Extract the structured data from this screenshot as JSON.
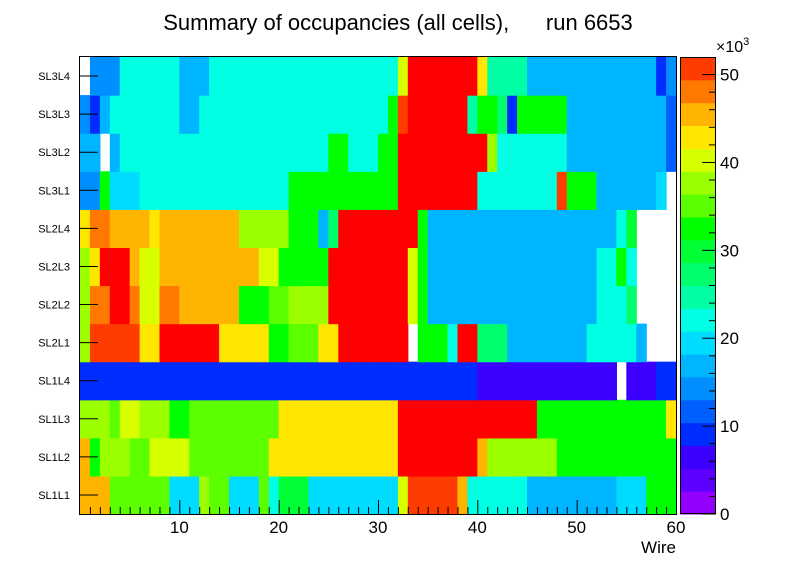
{
  "chart_data": {
    "type": "heatmap",
    "title": "Summary of occupancies (all cells),      run 6653",
    "xlabel": "Wire",
    "ylabel": "",
    "xlim": [
      0,
      60
    ],
    "x_ticks": [
      10,
      20,
      30,
      40,
      50,
      60
    ],
    "rows": [
      "SL1L1",
      "SL1L2",
      "SL1L3",
      "SL1L4",
      "SL2L1",
      "SL2L2",
      "SL2L3",
      "SL2L4",
      "SL3L1",
      "SL3L2",
      "SL3L3",
      "SL3L4"
    ],
    "colorbar": {
      "min": 0,
      "max": 52000,
      "levels": 20,
      "tick_values": [
        0,
        10,
        20,
        30,
        40,
        50
      ],
      "exponent_label": "×10",
      "exponent_power": "3",
      "colors": [
        "#9400ff",
        "#5d00ff",
        "#3c00ff",
        "#002dff",
        "#005fff",
        "#008fff",
        "#00b5ff",
        "#00dcff",
        "#00ffe3",
        "#00ffa5",
        "#00ff6c",
        "#00ff35",
        "#00ff00",
        "#5cff00",
        "#9cff00",
        "#d8ff00",
        "#ffe600",
        "#ffb400",
        "#ff7800",
        "#ff3c00",
        "#ff0000"
      ]
    },
    "data": [
      {
        "row": "SL1L1",
        "segments": [
          [
            0,
            3,
            17
          ],
          [
            3,
            9,
            13
          ],
          [
            9,
            12,
            7
          ],
          [
            12,
            13,
            14
          ],
          [
            13,
            15,
            13
          ],
          [
            15,
            18,
            7
          ],
          [
            18,
            19,
            13
          ],
          [
            19,
            20,
            8
          ],
          [
            20,
            23,
            11
          ],
          [
            23,
            32,
            7
          ],
          [
            32,
            33,
            15
          ],
          [
            33,
            38,
            19
          ],
          [
            38,
            39,
            17
          ],
          [
            39,
            45,
            8
          ],
          [
            45,
            54,
            6
          ],
          [
            54,
            57,
            7
          ],
          [
            57,
            60,
            12
          ]
        ]
      },
      {
        "row": "SL1L2",
        "segments": [
          [
            0,
            1,
            17
          ],
          [
            1,
            2,
            12
          ],
          [
            2,
            5,
            14
          ],
          [
            5,
            7,
            13
          ],
          [
            7,
            11,
            15
          ],
          [
            11,
            19,
            13
          ],
          [
            19,
            32,
            16
          ],
          [
            32,
            33,
            28
          ],
          [
            33,
            34,
            31
          ],
          [
            34,
            35,
            40
          ],
          [
            35,
            36,
            45
          ],
          [
            36,
            38,
            40
          ],
          [
            38,
            39,
            37
          ],
          [
            39,
            40,
            24
          ],
          [
            40,
            41,
            17
          ],
          [
            41,
            48,
            14
          ],
          [
            48,
            60,
            12
          ]
        ]
      },
      {
        "row": "SL1L3",
        "segments": [
          [
            0,
            3,
            14
          ],
          [
            3,
            4,
            13
          ],
          [
            4,
            6,
            15
          ],
          [
            6,
            9,
            14
          ],
          [
            9,
            11,
            12
          ],
          [
            11,
            20,
            13
          ],
          [
            20,
            32,
            16
          ],
          [
            32,
            33,
            31
          ],
          [
            33,
            34,
            34
          ],
          [
            34,
            36,
            42
          ],
          [
            36,
            37,
            41
          ],
          [
            37,
            38,
            45
          ],
          [
            38,
            39,
            40
          ],
          [
            39,
            40,
            30
          ],
          [
            40,
            46,
            20
          ],
          [
            46,
            59,
            12
          ],
          [
            59,
            60,
            16
          ]
        ]
      },
      {
        "row": "SL1L4",
        "segments": [
          [
            -1,
            0,
            -1
          ],
          [
            0,
            40,
            3
          ],
          [
            40,
            54,
            2
          ],
          [
            54,
            55,
            -1
          ],
          [
            55,
            58,
            2
          ],
          [
            58,
            60,
            3
          ]
        ]
      },
      {
        "row": "SL2L1",
        "segments": [
          [
            0,
            1,
            14
          ],
          [
            1,
            6,
            19
          ],
          [
            6,
            8,
            16
          ],
          [
            8,
            14,
            20
          ],
          [
            14,
            19,
            16
          ],
          [
            19,
            21,
            12
          ],
          [
            21,
            24,
            13
          ],
          [
            24,
            26,
            16
          ],
          [
            26,
            28,
            29
          ],
          [
            28,
            29,
            27
          ],
          [
            29,
            32,
            30
          ],
          [
            32,
            33,
            26
          ],
          [
            33,
            34,
            -1
          ],
          [
            34,
            37,
            12
          ],
          [
            37,
            38,
            8
          ],
          [
            38,
            39,
            20
          ],
          [
            39,
            40,
            50
          ],
          [
            40,
            43,
            10
          ],
          [
            43,
            51,
            6
          ],
          [
            51,
            56,
            8
          ],
          [
            56,
            57,
            6
          ],
          [
            57,
            60,
            -1
          ]
        ]
      },
      {
        "row": "SL2L2",
        "segments": [
          [
            0,
            1,
            14
          ],
          [
            1,
            3,
            18
          ],
          [
            3,
            5,
            21
          ],
          [
            5,
            6,
            18
          ],
          [
            6,
            8,
            15
          ],
          [
            8,
            10,
            18
          ],
          [
            10,
            16,
            17
          ],
          [
            16,
            19,
            12
          ],
          [
            19,
            21,
            13
          ],
          [
            21,
            25,
            14
          ],
          [
            25,
            27,
            22
          ],
          [
            27,
            32,
            30
          ],
          [
            32,
            33,
            29
          ],
          [
            33,
            34,
            15
          ],
          [
            34,
            35,
            12
          ],
          [
            35,
            52,
            6
          ],
          [
            52,
            55,
            8
          ],
          [
            55,
            56,
            10
          ],
          [
            56,
            60,
            -1
          ]
        ]
      },
      {
        "row": "SL2L3",
        "segments": [
          [
            0,
            1,
            14
          ],
          [
            1,
            2,
            16
          ],
          [
            2,
            5,
            21
          ],
          [
            5,
            6,
            17
          ],
          [
            6,
            8,
            15
          ],
          [
            8,
            18,
            17
          ],
          [
            18,
            20,
            15
          ],
          [
            20,
            25,
            12
          ],
          [
            25,
            27,
            22
          ],
          [
            27,
            31,
            28
          ],
          [
            31,
            33,
            30
          ],
          [
            33,
            34,
            15
          ],
          [
            34,
            35,
            12
          ],
          [
            35,
            52,
            6
          ],
          [
            52,
            54,
            8
          ],
          [
            54,
            55,
            12
          ],
          [
            55,
            56,
            8
          ],
          [
            56,
            60,
            -1
          ]
        ]
      },
      {
        "row": "SL2L4",
        "segments": [
          [
            0,
            1,
            16
          ],
          [
            1,
            3,
            18
          ],
          [
            3,
            7,
            17
          ],
          [
            7,
            8,
            16
          ],
          [
            8,
            16,
            17
          ],
          [
            16,
            21,
            14
          ],
          [
            21,
            24,
            12
          ],
          [
            24,
            25,
            6
          ],
          [
            25,
            26,
            10
          ],
          [
            26,
            28,
            22
          ],
          [
            28,
            33,
            30
          ],
          [
            33,
            34,
            24
          ],
          [
            34,
            35,
            12
          ],
          [
            35,
            54,
            6
          ],
          [
            54,
            55,
            8
          ],
          [
            55,
            56,
            11
          ],
          [
            56,
            60,
            -1
          ]
        ]
      },
      {
        "row": "SL3L1",
        "segments": [
          [
            0,
            2,
            5
          ],
          [
            2,
            3,
            12
          ],
          [
            3,
            6,
            7
          ],
          [
            6,
            21,
            8
          ],
          [
            21,
            32,
            12
          ],
          [
            32,
            33,
            25
          ],
          [
            33,
            34,
            32
          ],
          [
            34,
            35,
            30
          ],
          [
            35,
            36,
            33
          ],
          [
            36,
            37,
            38
          ],
          [
            37,
            38,
            32
          ],
          [
            38,
            39,
            35
          ],
          [
            39,
            40,
            20
          ],
          [
            40,
            48,
            8
          ],
          [
            48,
            49,
            19
          ],
          [
            49,
            52,
            12
          ],
          [
            52,
            58,
            6
          ],
          [
            58,
            59,
            7
          ],
          [
            59,
            60,
            -1
          ]
        ]
      },
      {
        "row": "SL3L2",
        "segments": [
          [
            0,
            2,
            6
          ],
          [
            2,
            3,
            -1
          ],
          [
            3,
            4,
            6
          ],
          [
            4,
            25,
            8
          ],
          [
            25,
            27,
            12
          ],
          [
            27,
            30,
            8
          ],
          [
            30,
            32,
            12
          ],
          [
            32,
            33,
            25
          ],
          [
            33,
            34,
            32
          ],
          [
            34,
            35,
            28
          ],
          [
            35,
            36,
            32
          ],
          [
            36,
            37,
            38
          ],
          [
            37,
            38,
            33
          ],
          [
            38,
            39,
            35
          ],
          [
            39,
            40,
            20
          ],
          [
            40,
            41,
            24
          ],
          [
            41,
            42,
            14
          ],
          [
            42,
            49,
            8
          ],
          [
            49,
            59,
            6
          ],
          [
            59,
            60,
            4
          ]
        ]
      },
      {
        "row": "SL3L3",
        "segments": [
          [
            0,
            1,
            5
          ],
          [
            1,
            2,
            3
          ],
          [
            2,
            3,
            6
          ],
          [
            3,
            10,
            8
          ],
          [
            10,
            12,
            6
          ],
          [
            12,
            31,
            8
          ],
          [
            31,
            32,
            12
          ],
          [
            32,
            33,
            19
          ],
          [
            33,
            34,
            35
          ],
          [
            34,
            35,
            30
          ],
          [
            35,
            36,
            35
          ],
          [
            36,
            37,
            38
          ],
          [
            37,
            38,
            35
          ],
          [
            38,
            39,
            20
          ],
          [
            39,
            40,
            9
          ],
          [
            40,
            42,
            12
          ],
          [
            42,
            43,
            10
          ],
          [
            43,
            44,
            3
          ],
          [
            44,
            49,
            12
          ],
          [
            49,
            59,
            6
          ],
          [
            59,
            60,
            4
          ]
        ]
      },
      {
        "row": "SL3L4",
        "segments": [
          [
            0,
            1,
            -1
          ],
          [
            1,
            4,
            5
          ],
          [
            4,
            10,
            8
          ],
          [
            10,
            13,
            6
          ],
          [
            13,
            32,
            8
          ],
          [
            32,
            33,
            15
          ],
          [
            33,
            34,
            30
          ],
          [
            34,
            35,
            32
          ],
          [
            35,
            36,
            33
          ],
          [
            36,
            37,
            36
          ],
          [
            37,
            38,
            32
          ],
          [
            38,
            39,
            33
          ],
          [
            39,
            40,
            25
          ],
          [
            40,
            41,
            16
          ],
          [
            41,
            45,
            9
          ],
          [
            45,
            58,
            6
          ],
          [
            58,
            59,
            3
          ],
          [
            59,
            60,
            5
          ]
        ]
      }
    ]
  }
}
